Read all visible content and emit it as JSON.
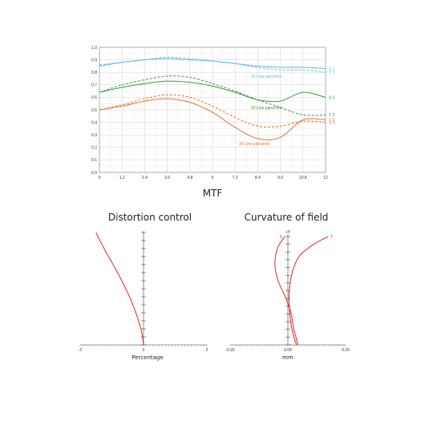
{
  "chart_data": [
    {
      "type": "line",
      "title": "MTF",
      "xlim": [
        0,
        12
      ],
      "ylim": [
        0,
        1
      ],
      "x_ticks": [
        "0",
        "1.2",
        "2.4",
        "3.6",
        "4.8",
        "6",
        "7.2",
        "8.4",
        "9.6",
        "10.8",
        "12"
      ],
      "y_ticks": [
        "0.0",
        "0.1",
        "0.2",
        "0.3",
        "0.4",
        "0.5",
        "0.6",
        "0.7",
        "0.8",
        "0.9",
        "1.0"
      ],
      "grid": true,
      "annotations": [
        "10 Line pairs/mm",
        "20 Line pairs/mm",
        "30 Line pairs/mm"
      ],
      "series": [
        {
          "name": "S 1",
          "color": "#5bbde0",
          "dash": "solid",
          "x": [
            0,
            1.2,
            2.4,
            3.6,
            4.8,
            6,
            7.2,
            8.4,
            9.6,
            10.8,
            12
          ],
          "y": [
            0.85,
            0.88,
            0.9,
            0.91,
            0.9,
            0.89,
            0.87,
            0.85,
            0.84,
            0.84,
            0.83
          ]
        },
        {
          "name": "T 1",
          "color": "#5bbde0",
          "dash": "dashed",
          "x": [
            0,
            1.2,
            2.4,
            3.6,
            4.8,
            6,
            7.2,
            8.4,
            9.6,
            10.8,
            12
          ],
          "y": [
            0.86,
            0.88,
            0.9,
            0.92,
            0.91,
            0.89,
            0.87,
            0.84,
            0.82,
            0.82,
            0.8
          ]
        },
        {
          "name": "S 2",
          "color": "#3a9a3a",
          "dash": "solid",
          "x": [
            0,
            1.2,
            2.4,
            3.6,
            4.8,
            6,
            7.2,
            8.4,
            9.6,
            10.8,
            12
          ],
          "y": [
            0.64,
            0.68,
            0.71,
            0.73,
            0.72,
            0.69,
            0.64,
            0.58,
            0.57,
            0.64,
            0.6
          ]
        },
        {
          "name": "T 2",
          "color": "#3a9a3a",
          "dash": "dashed",
          "x": [
            0,
            1.2,
            2.4,
            3.6,
            4.8,
            6,
            7.2,
            8.4,
            9.6,
            10.8,
            12
          ],
          "y": [
            0.64,
            0.7,
            0.74,
            0.77,
            0.76,
            0.71,
            0.65,
            0.58,
            0.52,
            0.46,
            0.46
          ]
        },
        {
          "name": "S 3",
          "color": "#e8702a",
          "dash": "dashed",
          "x": [
            0,
            1.2,
            2.4,
            3.6,
            4.8,
            6,
            7.2,
            8.4,
            9.6,
            10.8,
            12
          ],
          "y": [
            0.5,
            0.54,
            0.59,
            0.62,
            0.6,
            0.53,
            0.44,
            0.37,
            0.37,
            0.41,
            0.4
          ]
        },
        {
          "name": "T 3",
          "color": "#e8702a",
          "dash": "solid",
          "x": [
            0,
            1.2,
            2.4,
            3.6,
            4.8,
            6,
            7.2,
            8.4,
            9.6,
            10.8,
            12
          ],
          "y": [
            0.5,
            0.53,
            0.57,
            0.59,
            0.56,
            0.48,
            0.36,
            0.27,
            0.28,
            0.42,
            0.42
          ]
        }
      ]
    },
    {
      "type": "line",
      "title": "Distortion control",
      "xlabel": "Percentage",
      "xlim": [
        -2,
        2
      ],
      "x_ticks": [
        "-2",
        "0",
        "2"
      ],
      "series": [
        {
          "color": "#e8241c",
          "x": [
            -1.5,
            -1.25,
            -0.95,
            -0.65,
            -0.4,
            -0.2,
            -0.05,
            0
          ],
          "y": [
            1.0,
            0.86,
            0.71,
            0.55,
            0.4,
            0.25,
            0.1,
            0
          ]
        }
      ]
    },
    {
      "type": "line",
      "title": "Curvature of field",
      "xlabel": "mm",
      "xlim": [
        -0.2,
        0.2
      ],
      "x_ticks": [
        "-0.20",
        "0.00",
        "0.20"
      ],
      "y_axis_label": "+Y",
      "series": [
        {
          "name": "S",
          "color": "#e8241c",
          "x": [
            -0.01,
            -0.035,
            -0.045,
            -0.035,
            -0.01,
            0.01,
            0.02,
            0.03,
            0.035
          ],
          "y": [
            1.0,
            0.9,
            0.75,
            0.6,
            0.45,
            0.3,
            0.15,
            0.05,
            0
          ]
        },
        {
          "name": "T",
          "color": "#e8241c",
          "x": [
            0.14,
            0.09,
            0.04,
            0.015,
            0.005,
            0.005,
            0.01,
            0.02,
            0.03
          ],
          "y": [
            1.0,
            0.93,
            0.82,
            0.67,
            0.5,
            0.35,
            0.2,
            0.08,
            0
          ]
        }
      ]
    }
  ]
}
